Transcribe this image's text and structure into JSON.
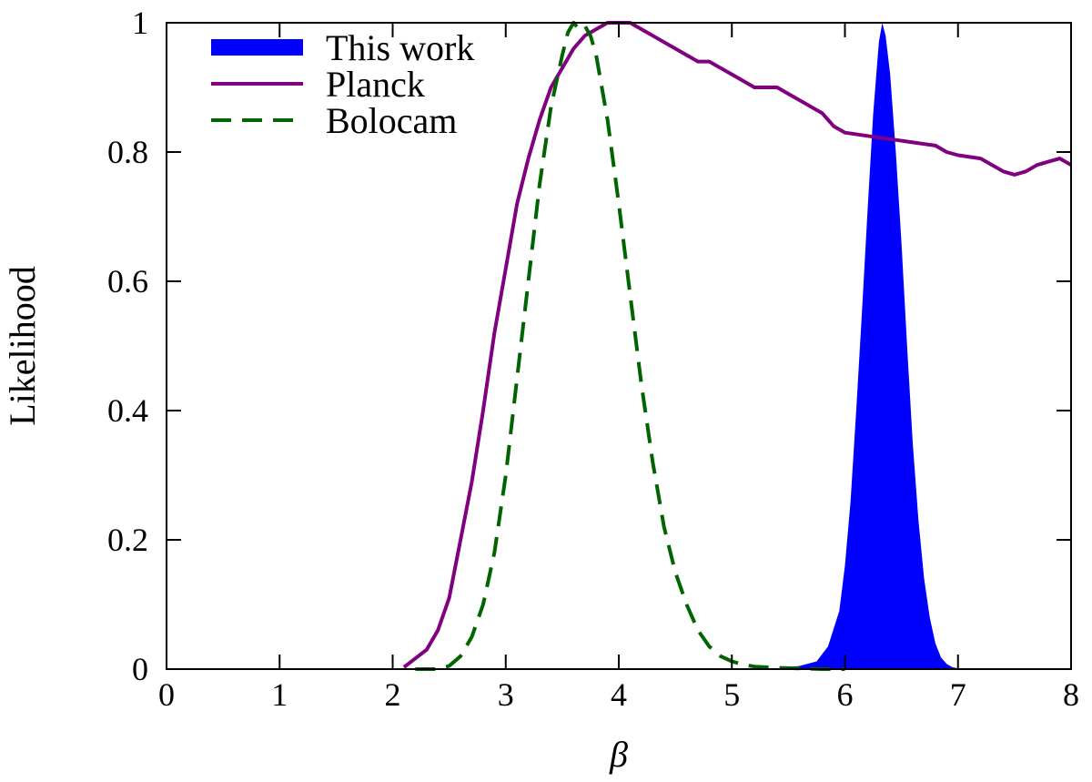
{
  "chart_data": {
    "type": "line",
    "title": "",
    "xlabel": "β",
    "ylabel": "Likelihood",
    "xlim": [
      0,
      8
    ],
    "ylim": [
      0,
      1
    ],
    "x_ticks": [
      0,
      1,
      2,
      3,
      4,
      5,
      6,
      7,
      8
    ],
    "x_tick_labels": [
      "0",
      "1",
      "2",
      "3",
      "4",
      "5",
      "6",
      "7",
      "8"
    ],
    "y_ticks": [
      0,
      0.2,
      0.4,
      0.6,
      0.8,
      1
    ],
    "y_tick_labels": [
      "0",
      "0.2",
      "0.4",
      "0.6",
      "0.8",
      "1"
    ],
    "grid": false,
    "legend_position": "top-left",
    "series": [
      {
        "name": "This work",
        "style": "filled-area",
        "color": "#0000ff",
        "x": [
          5.0,
          5.4,
          5.6,
          5.75,
          5.85,
          5.95,
          6.0,
          6.05,
          6.1,
          6.15,
          6.2,
          6.25,
          6.3,
          6.33,
          6.36,
          6.4,
          6.45,
          6.5,
          6.55,
          6.6,
          6.65,
          6.7,
          6.75,
          6.8,
          6.85,
          6.9,
          6.95,
          7.0,
          7.1
        ],
        "values": [
          0.0,
          0.001,
          0.005,
          0.012,
          0.035,
          0.09,
          0.16,
          0.26,
          0.4,
          0.55,
          0.71,
          0.86,
          0.97,
          1.0,
          0.98,
          0.92,
          0.8,
          0.66,
          0.5,
          0.35,
          0.23,
          0.14,
          0.08,
          0.04,
          0.018,
          0.008,
          0.003,
          0.001,
          0.0
        ]
      },
      {
        "name": "Planck",
        "style": "solid",
        "color": "#800080",
        "x": [
          2.1,
          2.3,
          2.4,
          2.5,
          2.6,
          2.7,
          2.8,
          2.9,
          3.0,
          3.1,
          3.2,
          3.3,
          3.4,
          3.5,
          3.6,
          3.7,
          3.8,
          3.9,
          4.0,
          4.1,
          4.2,
          4.3,
          4.4,
          4.5,
          4.6,
          4.7,
          4.8,
          4.9,
          5.0,
          5.1,
          5.2,
          5.3,
          5.4,
          5.5,
          5.6,
          5.7,
          5.8,
          5.9,
          6.0,
          6.2,
          6.4,
          6.6,
          6.8,
          6.9,
          7.0,
          7.2,
          7.3,
          7.4,
          7.5,
          7.6,
          7.7,
          7.8,
          7.9,
          8.0
        ],
        "values": [
          0.003,
          0.03,
          0.06,
          0.11,
          0.2,
          0.29,
          0.4,
          0.52,
          0.62,
          0.72,
          0.79,
          0.85,
          0.9,
          0.93,
          0.96,
          0.98,
          0.99,
          1.0,
          1.0,
          1.0,
          0.99,
          0.98,
          0.97,
          0.96,
          0.95,
          0.94,
          0.94,
          0.93,
          0.92,
          0.91,
          0.9,
          0.9,
          0.9,
          0.89,
          0.88,
          0.87,
          0.86,
          0.84,
          0.83,
          0.825,
          0.82,
          0.815,
          0.81,
          0.8,
          0.795,
          0.79,
          0.78,
          0.77,
          0.765,
          0.77,
          0.78,
          0.785,
          0.79,
          0.78
        ]
      },
      {
        "name": "Bolocam",
        "style": "dashed",
        "color": "#006400",
        "x": [
          2.2,
          2.4,
          2.5,
          2.6,
          2.7,
          2.8,
          2.9,
          3.0,
          3.1,
          3.2,
          3.3,
          3.4,
          3.5,
          3.55,
          3.6,
          3.65,
          3.7,
          3.75,
          3.8,
          3.9,
          4.0,
          4.1,
          4.2,
          4.3,
          4.4,
          4.5,
          4.6,
          4.7,
          4.8,
          4.9,
          5.0,
          5.1,
          5.2,
          5.4,
          5.6,
          5.8,
          6.0
        ],
        "values": [
          0.0,
          0.0,
          0.005,
          0.02,
          0.05,
          0.1,
          0.18,
          0.3,
          0.45,
          0.6,
          0.75,
          0.87,
          0.95,
          0.985,
          1.0,
          0.99,
          0.995,
          0.98,
          0.95,
          0.85,
          0.72,
          0.58,
          0.44,
          0.32,
          0.22,
          0.15,
          0.1,
          0.06,
          0.035,
          0.02,
          0.012,
          0.007,
          0.004,
          0.002,
          0.001,
          0.0,
          0.0
        ]
      }
    ]
  }
}
